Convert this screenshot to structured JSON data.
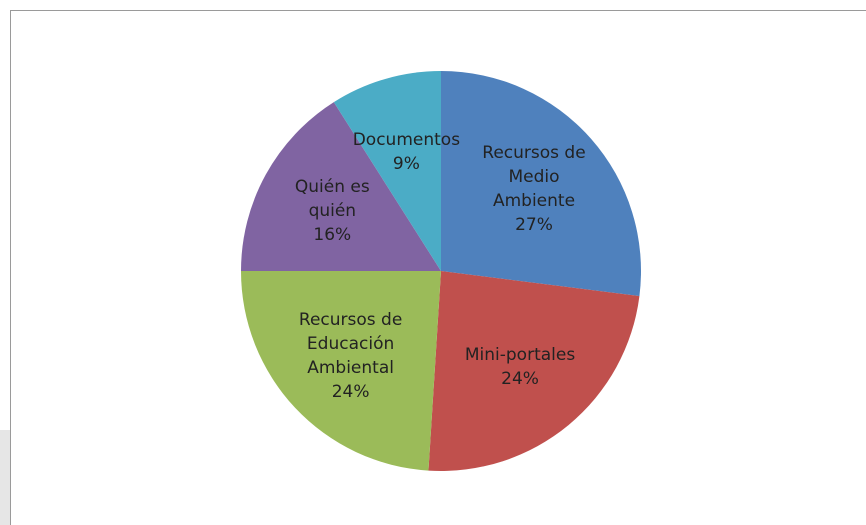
{
  "chart_data": {
    "type": "pie",
    "categories": [
      "Recursos de Medio Ambiente",
      "Mini-portales",
      "Recursos de Educación Ambiental",
      "Quién es quién",
      "Documentos"
    ],
    "values": [
      27,
      24,
      24,
      16,
      9
    ],
    "value_labels": [
      "27%",
      "24%",
      "24%",
      "16%",
      "9%"
    ],
    "colors": [
      "#4f81bd",
      "#c0504d",
      "#9bbb59",
      "#8064a2",
      "#4bacc6"
    ]
  }
}
